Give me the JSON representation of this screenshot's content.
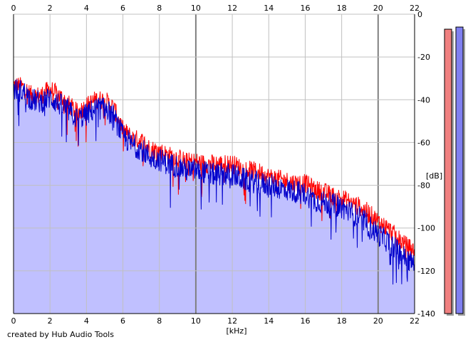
{
  "chart_data": {
    "type": "area",
    "x_unit_label": "[kHz]",
    "y_unit_label": "[dB]",
    "xlim": [
      0,
      22
    ],
    "ylim": [
      -140,
      0
    ],
    "x_ticks": [
      "0",
      "2",
      "4",
      "6",
      "8",
      "10",
      "12",
      "14",
      "16",
      "18",
      "20",
      "22"
    ],
    "y_ticks": [
      "0",
      "-20",
      "-40",
      "-60",
      "-80",
      "-100",
      "-120",
      "-140"
    ],
    "grid": true,
    "series": [
      {
        "color": "#ff0000",
        "role": "left channel (red, drawn behind)",
        "x": [
          0,
          0.5,
          1,
          1.5,
          2,
          2.5,
          3,
          3.5,
          4,
          4.5,
          5,
          5.5,
          6,
          6.5,
          7,
          7.5,
          8,
          8.5,
          9,
          9.5,
          10,
          10.5,
          11,
          11.5,
          12,
          12.5,
          13,
          13.5,
          14,
          14.5,
          15,
          15.5,
          16,
          16.5,
          17,
          17.5,
          18,
          18.5,
          19,
          19.5,
          20,
          20.5,
          21,
          21.5,
          22
        ],
        "y": [
          -33,
          -34,
          -38,
          -38,
          -35,
          -38,
          -42,
          -46,
          -43,
          -40,
          -40,
          -44,
          -54,
          -58,
          -59,
          -63,
          -64,
          -66,
          -67,
          -69,
          -69,
          -70,
          -70,
          -70,
          -70,
          -72,
          -73,
          -74,
          -76,
          -77,
          -78,
          -79,
          -79,
          -82,
          -83,
          -85,
          -86,
          -88,
          -90,
          -93,
          -97,
          -100,
          -104,
          -108,
          -111
        ]
      },
      {
        "color": "#0000cc",
        "fill": "#c0c0ff",
        "role": "right channel (blue, filled)",
        "x": [
          0,
          0.5,
          1,
          1.5,
          2,
          2.5,
          3,
          3.5,
          4,
          4.5,
          5,
          5.5,
          6,
          6.5,
          7,
          7.5,
          8,
          8.5,
          9,
          9.5,
          10,
          10.5,
          11,
          11.5,
          12,
          12.5,
          13,
          13.5,
          14,
          14.5,
          15,
          15.5,
          16,
          16.5,
          17,
          17.5,
          18,
          18.5,
          19,
          19.5,
          20,
          20.5,
          21,
          21.5,
          22
        ],
        "y": [
          -35,
          -36,
          -40,
          -41,
          -39,
          -42,
          -45,
          -49,
          -47,
          -44,
          -44,
          -48,
          -57,
          -61,
          -63,
          -67,
          -68,
          -70,
          -71,
          -73,
          -73,
          -74,
          -75,
          -75,
          -75,
          -77,
          -78,
          -79,
          -80,
          -81,
          -82,
          -83,
          -84,
          -87,
          -88,
          -89,
          -90,
          -93,
          -95,
          -99,
          -103,
          -106,
          -110,
          -114,
          -117
        ]
      }
    ],
    "level_meters": [
      {
        "color": "#f08080",
        "level_db": -7
      },
      {
        "color": "#8080f0",
        "level_db": -6
      }
    ]
  },
  "footer": {
    "credit": "created by Hub Audio Tools"
  },
  "colors": {
    "grid_minor": "#c0c0c0",
    "grid_major": "#808080",
    "area_fill": "#c0c0ff",
    "left_line": "#ff0000",
    "right_line": "#0000cc"
  }
}
